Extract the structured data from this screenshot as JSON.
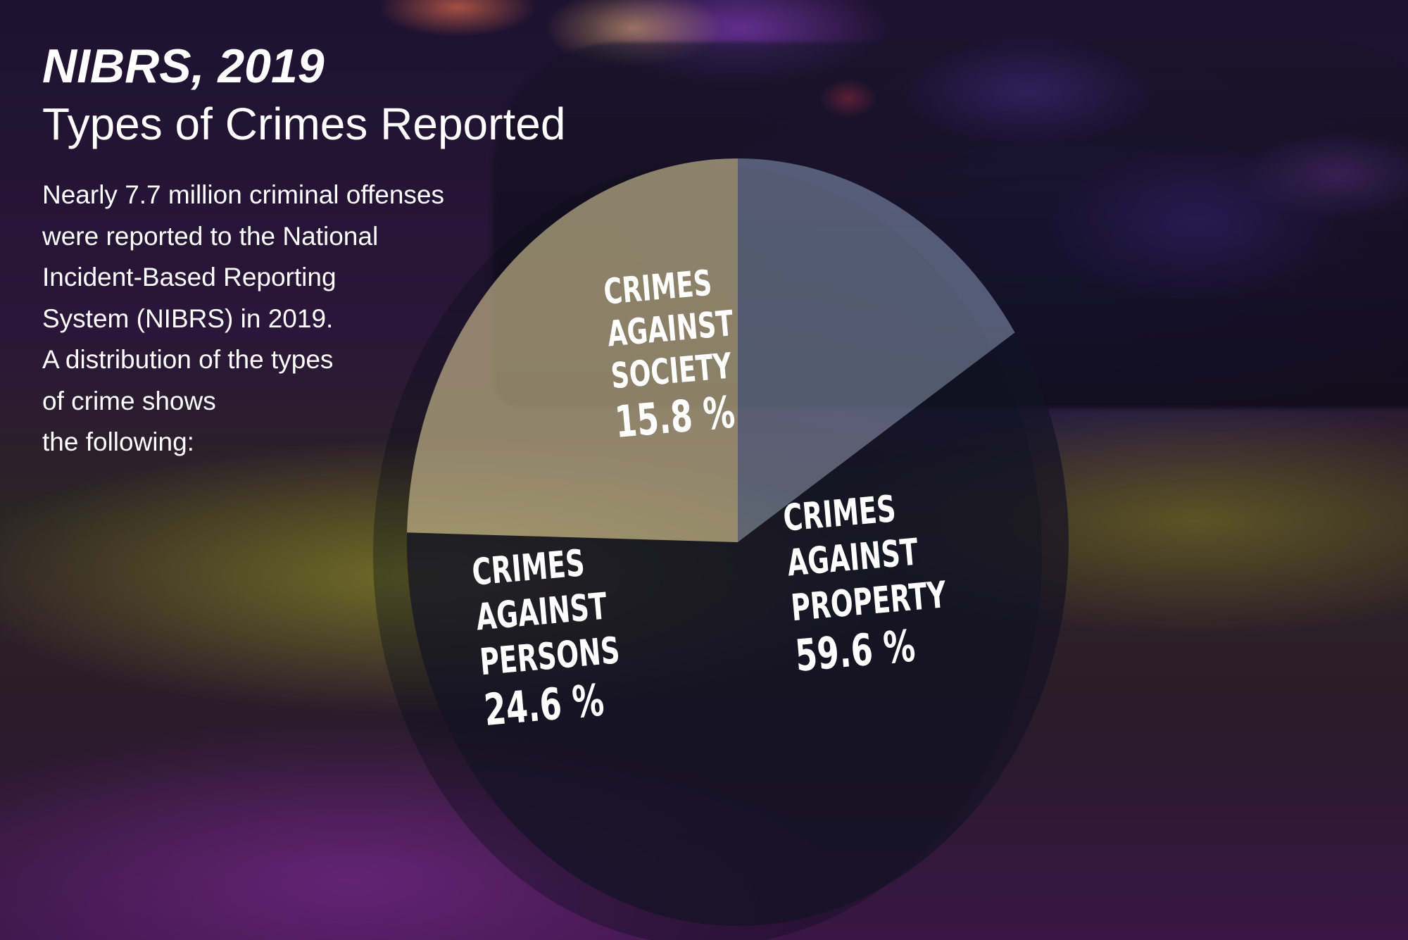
{
  "header": {
    "title": "NIBRS, 2019",
    "subtitle": "Types of Crimes Reported"
  },
  "intro_lines": [
    "Nearly 7.7 million criminal offenses",
    "were reported to the National",
    "Incident-Based Reporting",
    "System (NIBRS) in 2019.",
    "A distribution of the types",
    "of crime shows",
    "the following:"
  ],
  "chart_data": {
    "type": "pie",
    "unit": "%",
    "slices": [
      {
        "label": "CRIMES AGAINST SOCIETY",
        "value": 15.8,
        "value_text": "15.8 %",
        "color": "#8a9bb5"
      },
      {
        "label": "CRIMES AGAINST PROPERTY",
        "value": 59.6,
        "value_text": "59.6 %",
        "color": "#141424"
      },
      {
        "label": "CRIMES AGAINST PERSONS",
        "value": 24.6,
        "value_text": "24.6 %",
        "color": "#d9c898"
      }
    ]
  }
}
